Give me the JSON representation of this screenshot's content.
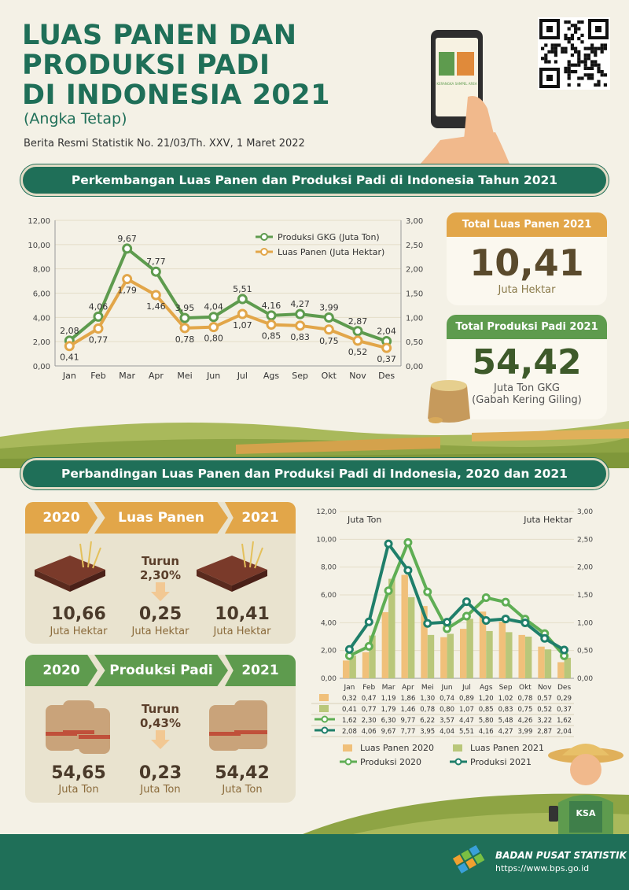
{
  "header": {
    "title_lines": [
      "LUAS PANEN DAN",
      "PRODUKSI PADI",
      "DI INDONESIA 2021"
    ],
    "subtitle": "(Angka Tetap)",
    "brs": "Berita Resmi Statistik No. 21/03/Th. XXV, 1 Maret 2022",
    "app_text": "KERANGKA SAMPEL AREA"
  },
  "section1": {
    "title": "Perkembangan Luas Panen dan Produksi Padi di Indonesia Tahun 2021"
  },
  "section2": {
    "title": "Perbandingan Luas Panen dan Produksi Padi di Indonesia, 2020 dan 2021"
  },
  "cards": {
    "luas": {
      "head": "Total Luas Panen 2021",
      "value": "10,41",
      "unit": "Juta Hektar",
      "color": "#e2a649"
    },
    "produksi": {
      "head": "Total Produksi Padi 2021",
      "value": "54,42",
      "unit1": "Juta Ton GKG",
      "unit2": "(Gabah Kering Giling)",
      "color": "#5e9b4e"
    }
  },
  "compare": {
    "luas": {
      "y1": "2020",
      "label": "Luas Panen",
      "y2": "2021",
      "v1": "10,66",
      "u1": "Juta Hektar",
      "change_label": "Turun",
      "change_pct": "2,30%",
      "diff": "0,25",
      "udiff": "Juta Hektar",
      "v2": "10,41",
      "u2": "Juta Hektar"
    },
    "produksi": {
      "y1": "2020",
      "label": "Produksi Padi",
      "y2": "2021",
      "v1": "54,65",
      "u1": "Juta Ton",
      "change_label": "Turun",
      "change_pct": "0,43%",
      "diff": "0,23",
      "udiff": "Juta Ton",
      "v2": "54,42",
      "u2": "Juta Ton"
    }
  },
  "chart_data": [
    {
      "type": "line",
      "categories": [
        "Jan",
        "Feb",
        "Mar",
        "Apr",
        "Mei",
        "Jun",
        "Jul",
        "Ags",
        "Sep",
        "Okt",
        "Nov",
        "Des"
      ],
      "y_left": {
        "ylim": [
          0,
          12
        ],
        "ticks": [
          "0,00",
          "2,00",
          "4,00",
          "6,00",
          "8,00",
          "10,00",
          "12,00"
        ]
      },
      "y_right": {
        "ylim": [
          0,
          3
        ],
        "ticks": [
          "0,00",
          "0,50",
          "1,00",
          "1,50",
          "2,00",
          "2,50",
          "3,00"
        ]
      },
      "legend_position": "top-right",
      "series": [
        {
          "name": "Produksi GKG (Juta Ton)",
          "axis": "left",
          "color": "#5e9b4e",
          "values": [
            2.08,
            4.06,
            9.67,
            7.77,
            3.95,
            4.04,
            5.51,
            4.16,
            4.27,
            3.99,
            2.87,
            2.04
          ],
          "labels": [
            "2,08",
            "4,06",
            "9,67",
            "7,77",
            "3,95",
            "4,04",
            "5,51",
            "4,16",
            "4,27",
            "3,99",
            "2,87",
            "2,04"
          ]
        },
        {
          "name": "Luas Panen (Juta Hektar)",
          "axis": "right",
          "color": "#e2a649",
          "values": [
            0.41,
            0.77,
            1.79,
            1.46,
            0.78,
            0.8,
            1.07,
            0.85,
            0.83,
            0.75,
            0.52,
            0.37
          ],
          "labels": [
            "0,41",
            "0,77",
            "1,79",
            "1,46",
            "0,78",
            "0,80",
            "1,07",
            "0,85",
            "0,83",
            "0,75",
            "0,52",
            "0,37"
          ]
        }
      ]
    },
    {
      "type": "bar",
      "categories": [
        "Jan",
        "Feb",
        "Mar",
        "Apr",
        "Mei",
        "Jun",
        "Jul",
        "Ags",
        "Sep",
        "Okt",
        "Nov",
        "Des"
      ],
      "ylabel_left": "Juta Ton",
      "ylabel_right": "Juta Hektar",
      "y_left": {
        "ylim": [
          0,
          12
        ],
        "ticks": [
          "0,00",
          "2,00",
          "4,00",
          "6,00",
          "8,00",
          "10,00",
          "12,00"
        ]
      },
      "y_right": {
        "ylim": [
          0,
          3
        ],
        "ticks": [
          "0,00",
          "0,50",
          "1,00",
          "1,50",
          "2,00",
          "2,50",
          "3,00"
        ]
      },
      "legend_position": "bottom",
      "series": [
        {
          "name": "Luas Panen 2020",
          "kind": "bar",
          "axis": "right",
          "color": "#f0c07a",
          "values": [
            0.32,
            0.47,
            1.19,
            1.86,
            1.3,
            0.74,
            0.89,
            1.2,
            1.02,
            0.78,
            0.57,
            0.29
          ],
          "labels": [
            "0,32",
            "0,47",
            "1,19",
            "1,86",
            "1,30",
            "0,74",
            "0,89",
            "1,20",
            "1,02",
            "0,78",
            "0,57",
            "0,29"
          ]
        },
        {
          "name": "Luas Panen 2021",
          "kind": "bar",
          "axis": "right",
          "color": "#b9c77a",
          "values": [
            0.41,
            0.77,
            1.79,
            1.46,
            0.78,
            0.8,
            1.07,
            0.85,
            0.83,
            0.75,
            0.52,
            0.37
          ],
          "labels": [
            "0,41",
            "0,77",
            "1,79",
            "1,46",
            "0,78",
            "0,80",
            "1,07",
            "0,85",
            "0,83",
            "0,75",
            "0,52",
            "0,37"
          ]
        },
        {
          "name": "Produksi 2020",
          "kind": "line",
          "axis": "left",
          "color": "#5fae54",
          "values": [
            1.62,
            2.3,
            6.3,
            9.77,
            6.22,
            3.57,
            4.47,
            5.8,
            5.48,
            4.26,
            3.22,
            1.62
          ],
          "labels": [
            "1,62",
            "2,30",
            "6,30",
            "9,77",
            "6,22",
            "3,57",
            "4,47",
            "5,80",
            "5,48",
            "4,26",
            "3,22",
            "1,62"
          ]
        },
        {
          "name": "Produksi 2021",
          "kind": "line",
          "axis": "left",
          "color": "#1f7f6a",
          "values": [
            2.08,
            4.06,
            9.67,
            7.77,
            3.95,
            4.04,
            5.51,
            4.16,
            4.27,
            3.99,
            2.87,
            2.04
          ],
          "labels": [
            "2,08",
            "4,06",
            "9,67",
            "7,77",
            "3,95",
            "4,04",
            "5,51",
            "4,16",
            "4,27",
            "3,99",
            "2,87",
            "2,04"
          ]
        }
      ]
    }
  ],
  "footer": {
    "org": "BADAN PUSAT STATISTIK",
    "url": "https://www.bps.go.id"
  },
  "farmer": {
    "badge": "KSA"
  }
}
